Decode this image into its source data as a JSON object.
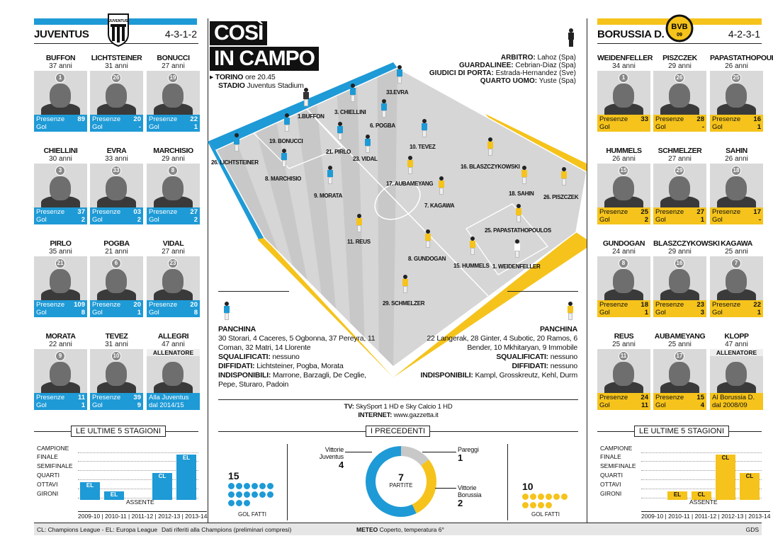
{
  "colors": {
    "juventus": "#1e9ad6",
    "borussia": "#f5c31b",
    "dark": "#111111"
  },
  "juventus": {
    "name": "JUVENTUS",
    "formation": "4-3-1-2",
    "players": [
      {
        "name": "BUFFON",
        "age": "37 anni",
        "num": "1",
        "presenze": "89",
        "gol": ""
      },
      {
        "name": "LICHTSTEINER",
        "age": "31 anni",
        "num": "26",
        "presenze": "20",
        "gol": "-"
      },
      {
        "name": "BONUCCI",
        "age": "27 anni",
        "num": "19",
        "presenze": "22",
        "gol": "1"
      },
      {
        "name": "CHIELLINI",
        "age": "30 anni",
        "num": "3",
        "presenze": "37",
        "gol": "2"
      },
      {
        "name": "EVRA",
        "age": "33 anni",
        "num": "33",
        "presenze": "03",
        "gol": "2"
      },
      {
        "name": "MARCHISIO",
        "age": "29 anni",
        "num": "8",
        "presenze": "27",
        "gol": "2"
      },
      {
        "name": "PIRLO",
        "age": "35 anni",
        "num": "21",
        "presenze": "109",
        "gol": "8"
      },
      {
        "name": "POGBA",
        "age": "21 anni",
        "num": "6",
        "presenze": "20",
        "gol": "1"
      },
      {
        "name": "VIDAL",
        "age": "27 anni",
        "num": "23",
        "presenze": "20",
        "gol": "8"
      },
      {
        "name": "MORATA",
        "age": "22 anni",
        "num": "9",
        "presenze": "11",
        "gol": "1"
      },
      {
        "name": "TEVEZ",
        "age": "31 anni",
        "num": "10",
        "presenze": "39",
        "gol": "9"
      }
    ],
    "coach": {
      "name": "ALLEGRI",
      "age": "47 anni",
      "role": "ALLENATORE",
      "note": "Alla Juventus dal 2014/15"
    }
  },
  "borussia": {
    "name": "BORUSSIA D.",
    "formation": "4-2-3-1",
    "players": [
      {
        "name": "WEIDENFELLER",
        "age": "34 anni",
        "num": "1",
        "presenze": "33",
        "gol": ""
      },
      {
        "name": "PISZCZEK",
        "age": "29 anni",
        "num": "26",
        "presenze": "28",
        "gol": "-"
      },
      {
        "name": "PAPASTATHOPOULOS",
        "age": "26 anni",
        "num": "25",
        "presenze": "16",
        "gol": "1"
      },
      {
        "name": "HUMMELS",
        "age": "26 anni",
        "num": "15",
        "presenze": "25",
        "gol": "2"
      },
      {
        "name": "SCHMELZER",
        "age": "27 anni",
        "num": "29",
        "presenze": "27",
        "gol": "1"
      },
      {
        "name": "SAHIN",
        "age": "26 anni",
        "num": "18",
        "presenze": "17",
        "gol": "-"
      },
      {
        "name": "GUNDOGAN",
        "age": "24 anni",
        "num": "8",
        "presenze": "18",
        "gol": "1"
      },
      {
        "name": "BLASZCZYKOWSKI",
        "age": "29 anni",
        "num": "16",
        "presenze": "23",
        "gol": "3"
      },
      {
        "name": "KAGAWA",
        "age": "25 anni",
        "num": "7",
        "presenze": "22",
        "gol": "1"
      },
      {
        "name": "REUS",
        "age": "25 anni",
        "num": "11",
        "presenze": "24",
        "gol": "11"
      },
      {
        "name": "AUBAMEYANG",
        "age": "25 anni",
        "num": "17",
        "presenze": "15",
        "gol": "4"
      }
    ],
    "coach": {
      "name": "KLOPP",
      "age": "47 anni",
      "role": "ALLENATORE",
      "note": "Al Borussia D. dal 2008/09"
    }
  },
  "labels": {
    "presenze": "Presenze",
    "gol": "Gol",
    "last5": "LE ULTIME 5 STAGIONI",
    "precedenti": "I PRECEDENTI",
    "assente": "ASSENTE",
    "panchina": "PANCHINA"
  },
  "history": {
    "rows": [
      "CAMPIONE",
      "FINALE",
      "SEMIFINALE",
      "QUARTI",
      "OTTAVI",
      "GIRONI"
    ],
    "seasons": "2009-10 | 2010-11 | 2011-12 | 2012-13 | 2013-14",
    "juv": [
      "EL",
      "EL",
      "",
      "CL",
      "EL"
    ],
    "bvb": [
      "",
      "EL",
      "CL",
      "CL",
      "CL"
    ]
  },
  "title": {
    "line1": "COSÌ",
    "line2": "IN CAMPO"
  },
  "match": {
    "city": "TORINO",
    "time": "ore 20.45",
    "stadio_lbl": "STADIO",
    "stadio": "Juventus Stadium"
  },
  "officials": [
    {
      "role": "ARBITRO:",
      "name": "Lahoz (Spa)"
    },
    {
      "role": "GUARDALINEE:",
      "name": "Cebrian-Diaz (Spa)"
    },
    {
      "role": "GIUDICI DI PORTA:",
      "name": "Estrada-Hernandez (Sve)"
    },
    {
      "role": "QUARTO UOMO:",
      "name": "Yuste (Spa)"
    }
  ],
  "field_players": {
    "juv": [
      {
        "label": "1.BUFFON"
      },
      {
        "label": "3. CHIELLINI"
      },
      {
        "label": "33.EVRA"
      },
      {
        "label": "6. POGBA"
      },
      {
        "label": "19. BONUCCI"
      },
      {
        "label": "21. PIRLO"
      },
      {
        "label": "23. VIDAL"
      },
      {
        "label": "10. TEVEZ"
      },
      {
        "label": "26. LICHTSTEINER"
      },
      {
        "label": "8. MARCHISIO"
      },
      {
        "label": "9. MORATA"
      }
    ],
    "bvb": [
      {
        "label": "16. BLASZCZYKOWSKI"
      },
      {
        "label": "17. AUBAMEYANG"
      },
      {
        "label": "18. SAHIN"
      },
      {
        "label": "26. PISZCZEK"
      },
      {
        "label": "7. KAGAWA"
      },
      {
        "label": "25. PAPASTATHOPOULOS"
      },
      {
        "label": "11. REUS"
      },
      {
        "label": "8. GUNDOGAN"
      },
      {
        "label": "15. HUMMELS"
      },
      {
        "label": "1. WEIDENFELLER"
      },
      {
        "label": "29. SCHMELZER"
      }
    ]
  },
  "juv_bench": {
    "panchina": "30 Storari, 4 Caceres, 5 Ogbonna, 37 Pereyra, 11 Coman, 32 Matri, 14 Llorente",
    "squalificati_lbl": "SQUALIFICATI:",
    "squalificati": "nessuno",
    "diffidati_lbl": "DIFFIDATI:",
    "diffidati": "Lichtsteiner, Pogba, Morata",
    "indisponibili_lbl": "INDISPONIBILI:",
    "indisponibili": "Marrone, Barzagli, De Ceglie, Pepe, Sturaro, Padoin"
  },
  "bvb_bench": {
    "panchina": "22 Langerak, 28 Ginter, 4 Subotic, 20 Ramos, 6 Bender, 10 Mkhitaryan, 9 Immobile",
    "squalificati_lbl": "SQUALIFICATI:",
    "squalificati": "nessuno",
    "diffidati_lbl": "DIFFIDATI:",
    "diffidati": "nessuno",
    "indisponibili_lbl": "INDISPONIBILI:",
    "indisponibili": "Kampl, Grosskreutz, Kehl, Durm"
  },
  "tv": {
    "tv_lbl": "TV:",
    "tv": "SkySport 1 HD  e Sky Calcio 1 HD",
    "internet_lbl": "INTERNET:",
    "internet": "www.gazzetta.it"
  },
  "precedenti": {
    "total": "7",
    "total_lbl": "PARTITE",
    "juv_lbl": "Vittorie Juventus",
    "juv": "4",
    "pareggi_lbl": "Pareggi",
    "pareggi": "1",
    "bvb_lbl": "Vittorie Borussia",
    "bvb": "2",
    "juv_gol": "15",
    "bvb_gol": "10",
    "gol_lbl": "GOL FATTI"
  },
  "chart_data": {
    "type": "pie",
    "values": [
      4,
      1,
      2
    ],
    "categories": [
      "Vittorie Juventus",
      "Pareggi",
      "Vittorie Borussia"
    ]
  },
  "footer": {
    "legend": "CL: Champions League - EL: Europa League",
    "note": "Dati riferiti alla Champions (preliminari compresi)",
    "meteo_lbl": "METEO",
    "meteo": "Coperto, temperatura 6°",
    "credit": "GDS"
  }
}
